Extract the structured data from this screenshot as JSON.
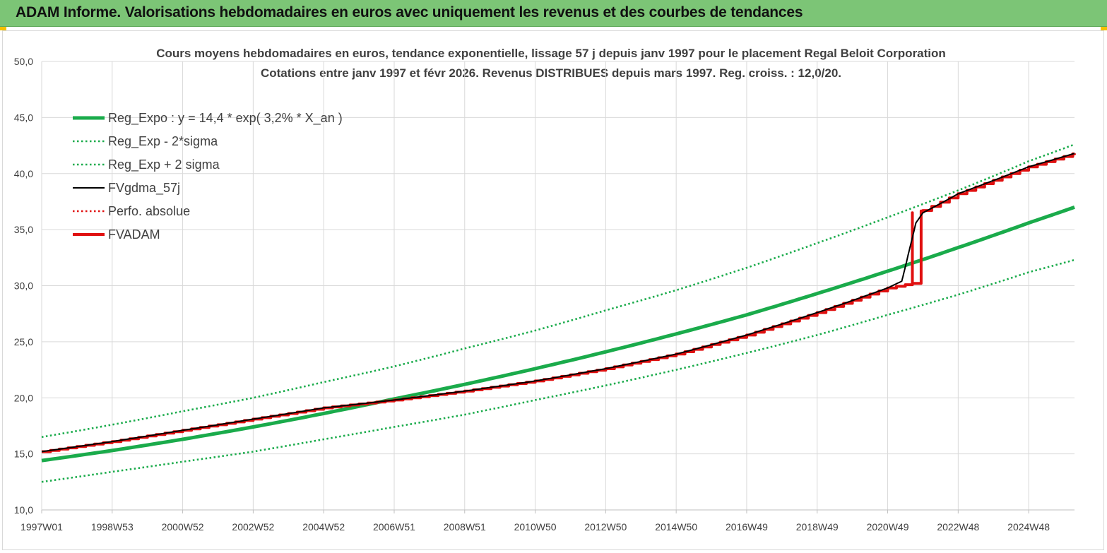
{
  "header": {
    "title": "ADAM Informe. Valorisations hebdomadaires en euros avec uniquement les revenus et des courbes de tendances"
  },
  "chart_data": {
    "type": "line",
    "title": "Cours moyens hebdomadaires en euros, tendance exponentielle, lissage 57 j depuis janv 1997 pour le placement Regal Beloit Corporation",
    "subtitle": "Cotations entre janv 1997 et févr 2026. Revenus DISTRIBUES depuis mars 1997. Reg. croiss. : 12,0/20.",
    "xlabel": "",
    "ylabel": "",
    "ylim": [
      10,
      50
    ],
    "y_ticks": [
      "10,0",
      "15,0",
      "20,0",
      "25,0",
      "30,0",
      "35,0",
      "40,0",
      "45,0",
      "50,0"
    ],
    "y_tick_values": [
      10,
      15,
      20,
      25,
      30,
      35,
      40,
      45,
      50
    ],
    "x_ticks": [
      "1997W01",
      "1998W53",
      "2000W52",
      "2002W52",
      "2004W52",
      "2006W51",
      "2008W51",
      "2010W50",
      "2012W50",
      "2014W50",
      "2016W49",
      "2018W49",
      "2020W49",
      "2022W48",
      "2024W48"
    ],
    "x_tick_years": [
      1997.0,
      1999.0,
      2001.0,
      2003.0,
      2005.0,
      2007.0,
      2009.0,
      2011.0,
      2013.0,
      2015.0,
      2017.0,
      2019.0,
      2021.0,
      2023.0,
      2025.0
    ],
    "xlim": [
      1997.0,
      2026.3
    ],
    "grid": true,
    "legend_position": "top-left",
    "series": [
      {
        "name": "Reg_Expo : y = 14,4 * exp( 3,2% *  X_an )",
        "color": "#1aab4b",
        "style": "solid-thick",
        "x": [
          1997.0,
          1999.0,
          2001.0,
          2003.0,
          2005.0,
          2007.0,
          2009.0,
          2011.0,
          2013.0,
          2015.0,
          2017.0,
          2019.0,
          2021.0,
          2023.0,
          2025.0,
          2026.3
        ],
        "values": [
          14.4,
          15.3,
          16.3,
          17.4,
          18.6,
          19.9,
          21.2,
          22.6,
          24.1,
          25.7,
          27.4,
          29.3,
          31.3,
          33.4,
          35.6,
          37.0
        ]
      },
      {
        "name": "Reg_Exp - 2*sigma",
        "color": "#1aab4b",
        "style": "dotted",
        "x": [
          1997.0,
          1999.0,
          2001.0,
          2003.0,
          2005.0,
          2007.0,
          2009.0,
          2011.0,
          2013.0,
          2015.0,
          2017.0,
          2019.0,
          2021.0,
          2023.0,
          2025.0,
          2026.3
        ],
        "values": [
          12.5,
          13.4,
          14.3,
          15.2,
          16.3,
          17.4,
          18.5,
          19.8,
          21.1,
          22.5,
          24.0,
          25.6,
          27.4,
          29.2,
          31.2,
          32.3
        ]
      },
      {
        "name": "Reg_Exp + 2 sigma",
        "color": "#1aab4b",
        "style": "dotted",
        "x": [
          1997.0,
          1999.0,
          2001.0,
          2003.0,
          2005.0,
          2007.0,
          2009.0,
          2011.0,
          2013.0,
          2015.0,
          2017.0,
          2019.0,
          2021.0,
          2023.0,
          2025.0,
          2026.3
        ],
        "values": [
          16.5,
          17.6,
          18.8,
          20.0,
          21.4,
          22.8,
          24.4,
          26.0,
          27.8,
          29.6,
          31.6,
          33.8,
          36.1,
          38.5,
          41.1,
          42.6
        ]
      },
      {
        "name": "FVgdma_57j",
        "color": "#000000",
        "style": "solid",
        "x": [
          1997.0,
          1999.0,
          2001.0,
          2003.0,
          2005.0,
          2007.0,
          2009.0,
          2011.0,
          2013.0,
          2015.0,
          2017.0,
          2019.0,
          2021.0,
          2021.4,
          2021.6,
          2021.8,
          2022.0,
          2022.3,
          2022.6,
          2023.0,
          2025.0,
          2026.3
        ],
        "values": [
          15.2,
          16.1,
          17.1,
          18.1,
          19.1,
          19.8,
          20.6,
          21.5,
          22.6,
          23.9,
          25.6,
          27.6,
          29.8,
          30.4,
          33.0,
          35.6,
          36.5,
          37.0,
          37.5,
          38.2,
          40.6,
          41.8
        ]
      },
      {
        "name": "Perfo. absolue",
        "color": "#e01010",
        "style": "dotted",
        "x": [],
        "values": []
      },
      {
        "name": "FVADAM",
        "color": "#e01010",
        "style": "step-thick",
        "x": [
          1997.0,
          1999.0,
          2001.0,
          2003.0,
          2005.0,
          2007.0,
          2009.0,
          2011.0,
          2013.0,
          2015.0,
          2017.0,
          2019.0,
          2021.0,
          2021.7,
          2021.7,
          2022.0,
          2023.0,
          2025.0,
          2026.3
        ],
        "values": [
          15.2,
          16.1,
          17.1,
          18.1,
          19.1,
          19.8,
          20.6,
          21.5,
          22.6,
          23.9,
          25.6,
          27.6,
          29.8,
          30.2,
          36.5,
          36.7,
          38.2,
          40.6,
          41.8
        ]
      }
    ]
  }
}
